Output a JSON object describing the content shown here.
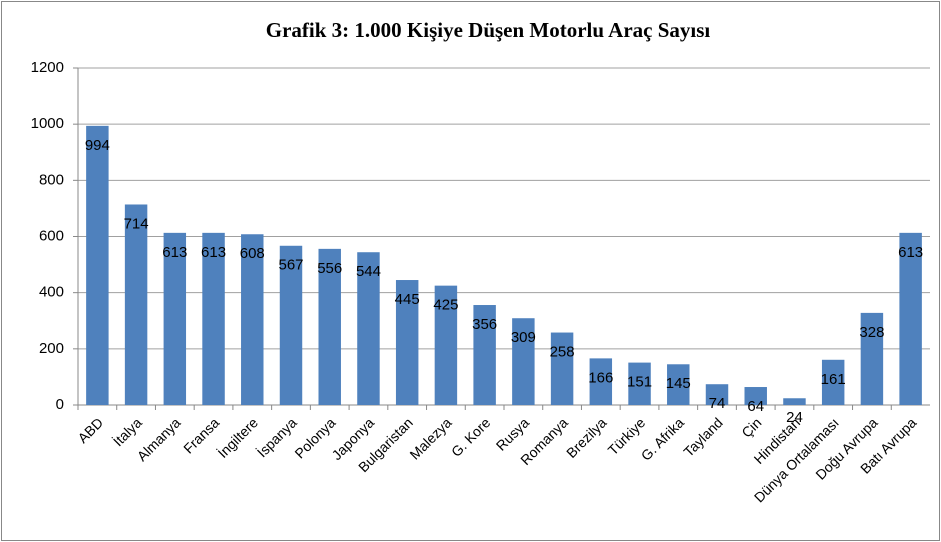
{
  "chart_data": {
    "type": "bar",
    "title": "Grafik 3: 1.000 Kişiye Düşen Motorlu Araç Sayısı",
    "categories": [
      "ABD",
      "İtalya",
      "Almanya",
      "Fransa",
      "İngiltere",
      "İspanya",
      "Polonya",
      "Japonya",
      "Bulgaristan",
      "Malezya",
      "G. Kore",
      "Rusya",
      "Romanya",
      "Brezilya",
      "Türkiye",
      "G. Afrika",
      "Tayland",
      "Çin",
      "Hindistan",
      "Dünya Ortalaması",
      "Doğu Avrupa",
      "Batı Avrupa"
    ],
    "values": [
      994,
      714,
      613,
      613,
      608,
      567,
      556,
      544,
      445,
      425,
      356,
      309,
      258,
      166,
      151,
      145,
      74,
      64,
      24,
      161,
      328,
      613
    ],
    "color": "#4f81bd",
    "ylim": [
      0,
      1200
    ],
    "yticks": [
      0,
      200,
      400,
      600,
      800,
      1000,
      1200
    ],
    "grid": true
  }
}
